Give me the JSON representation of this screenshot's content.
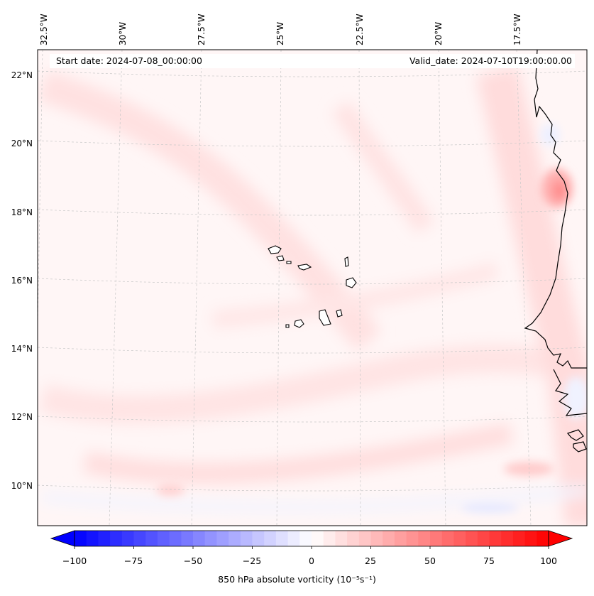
{
  "map": {
    "region": "Eastern tropical Atlantic with Cabo Verde islands and West African coast",
    "longitude_labels": [
      "32.5°W",
      "30°W",
      "27.5°W",
      "25°W",
      "22.5°W",
      "20°W",
      "17.5°W"
    ],
    "latitude_labels": [
      "22°N",
      "20°N",
      "18°N",
      "16°N",
      "14°N",
      "12°N",
      "10°N"
    ],
    "start_date_label": "Start date: 2024-07-08_00:00:00",
    "valid_date_label": "Valid_date: 2024-07-10T19:00:00.00"
  },
  "colorbar": {
    "title": "850 hPa absolute vorticity",
    "units": "(10⁻⁵s⁻¹)",
    "ticks": [
      "−100",
      "−75",
      "−50",
      "−25",
      "0",
      "25",
      "50",
      "75",
      "100"
    ],
    "tick_values": [
      -100,
      -75,
      -50,
      -25,
      0,
      25,
      50,
      75,
      100
    ],
    "min": -100,
    "max": 100,
    "levels": 41,
    "low_color": "#0000ff",
    "mid_color": "#ffffff",
    "high_color": "#ff0000"
  },
  "colors": {
    "frame": "#000000",
    "coast": "#000000",
    "grid": "#c8c8c8"
  }
}
